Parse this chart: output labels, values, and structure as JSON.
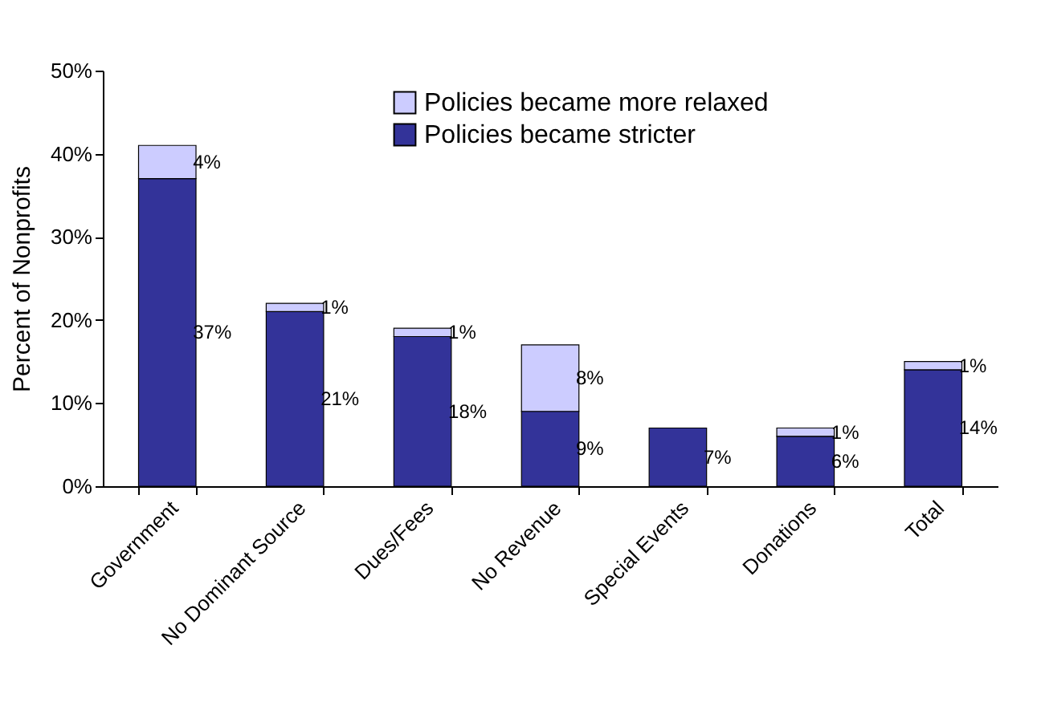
{
  "chart_data": {
    "type": "bar",
    "stacked": true,
    "ylabel": "Percent of Nonprofits",
    "categories": [
      "Government",
      "No Dominant Source",
      "Dues/Fees",
      "No Revenue",
      "Special Events",
      "Donations",
      "Total"
    ],
    "series": [
      {
        "name": "Policies became stricter",
        "color": "#333399",
        "values": [
          37,
          21,
          18,
          9,
          7,
          6,
          14
        ],
        "value_labels": [
          "37%",
          "21%",
          "18%",
          "9%",
          "7%",
          "6%",
          "14%"
        ]
      },
      {
        "name": "Policies became more relaxed",
        "color": "#ccccff",
        "values": [
          4,
          1,
          1,
          8,
          null,
          1,
          1
        ],
        "value_labels": [
          "4%",
          "1%",
          "1%",
          "8%",
          null,
          "1%",
          "1%"
        ]
      }
    ],
    "ylim": [
      0,
      50
    ],
    "yticks": [
      {
        "value": 0,
        "label": "0%"
      },
      {
        "value": 10,
        "label": "10%"
      },
      {
        "value": 20,
        "label": "20%"
      },
      {
        "value": 30,
        "label": "30%"
      },
      {
        "value": 40,
        "label": "40%"
      },
      {
        "value": 50,
        "label": "50%"
      }
    ],
    "legend": "top",
    "grid": false
  }
}
